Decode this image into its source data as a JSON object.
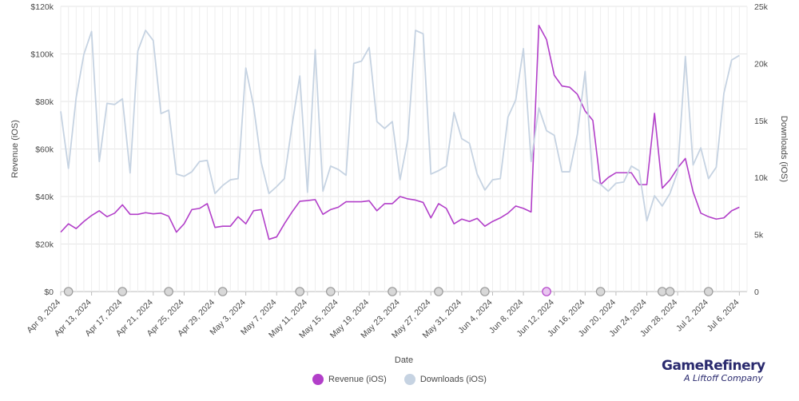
{
  "chart_data": {
    "type": "line",
    "xlabel": "Date",
    "ylabel_left": "Revenue (iOS)",
    "ylabel_right": "Downloads (iOS)",
    "y_left_ticks": [
      "$0",
      "$20k",
      "$40k",
      "$60k",
      "$80k",
      "$100k",
      "$120k"
    ],
    "y_right_ticks": [
      "0",
      "5k",
      "10k",
      "15k",
      "20k",
      "25k"
    ],
    "y_left_range": [
      0,
      120000
    ],
    "y_right_range": [
      0,
      25000
    ],
    "x_ticks": [
      "Apr 9, 2024",
      "Apr 13, 2024",
      "Apr 17, 2024",
      "Apr 21, 2024",
      "Apr 25, 2024",
      "Apr 29, 2024",
      "May 3, 2024",
      "May 7, 2024",
      "May 11, 2024",
      "May 15, 2024",
      "May 19, 2024",
      "May 23, 2024",
      "May 27, 2024",
      "May 31, 2024",
      "Jun 4, 2024",
      "Jun 8, 2024",
      "Jun 12, 2024",
      "Jun 16, 2024",
      "Jun 20, 2024",
      "Jun 24, 2024",
      "Jun 28, 2024",
      "Jul 2, 2024",
      "Jul 6, 2024"
    ],
    "x_start": "Apr 9, 2024",
    "x_end": "Jul 7, 2024",
    "grid": true,
    "legend_position": "bottom-center",
    "series": [
      {
        "name": "Revenue (iOS)",
        "axis": "left",
        "color": "#b23fc9",
        "values": [
          25000,
          28500,
          26500,
          29500,
          32000,
          34000,
          31500,
          33000,
          36500,
          32500,
          32500,
          33200,
          32700,
          33000,
          31700,
          25000,
          28500,
          34500,
          35000,
          37000,
          27000,
          27500,
          27500,
          31500,
          28500,
          34000,
          34500,
          22000,
          23000,
          28500,
          33500,
          38000,
          38300,
          38700,
          32500,
          34500,
          35500,
          37800,
          37800,
          37800,
          38200,
          34000,
          37000,
          37000,
          40000,
          39000,
          38500,
          37500,
          31000,
          37000,
          35000,
          28500,
          30500,
          29500,
          30800,
          27500,
          29500,
          31000,
          33000,
          36000,
          35000,
          33500,
          112000,
          106000,
          91000,
          86500,
          86000,
          83000,
          76000,
          72000,
          45000,
          48000,
          50000,
          50000,
          50000,
          45000,
          45000,
          75000,
          43500,
          47000,
          52000,
          56000,
          42000,
          33000,
          31500,
          30500,
          31000,
          34000,
          35500
        ]
      },
      {
        "name": "Downloads (iOS)",
        "axis": "right",
        "color": "#c6d3e2",
        "values": [
          15800,
          10800,
          17000,
          20800,
          22800,
          11400,
          16500,
          16400,
          16900,
          10400,
          21100,
          22900,
          22000,
          15600,
          15900,
          10300,
          10100,
          10500,
          11400,
          11500,
          8600,
          9300,
          9800,
          9900,
          19600,
          16300,
          11300,
          8600,
          9200,
          9900,
          14600,
          18900,
          8700,
          21200,
          8800,
          11000,
          10700,
          10200,
          20000,
          20200,
          21400,
          14900,
          14300,
          14900,
          9800,
          13300,
          22900,
          22600,
          10300,
          10600,
          11000,
          15700,
          13400,
          13000,
          10300,
          8900,
          9800,
          9900,
          15300,
          16800,
          21300,
          11400,
          16100,
          14100,
          13700,
          10500,
          10500,
          13800,
          19300,
          9800,
          9400,
          8800,
          9500,
          9600,
          11000,
          10600,
          6200,
          8400,
          7500,
          8600,
          10500,
          20600,
          11100,
          12600,
          9900,
          10900,
          17400,
          20300,
          20700
        ]
      }
    ],
    "markers_on_zero_line": [
      "Apr 10, 2024",
      "Apr 17, 2024",
      "Apr 23, 2024",
      "Apr 30, 2024",
      "May 10, 2024",
      "May 14, 2024",
      "May 22, 2024",
      "May 28, 2024",
      "Jun 3, 2024",
      "Jun 11, 2024",
      "Jun 18, 2024",
      "Jun 26, 2024",
      "Jun 27, 2024",
      "Jul 2, 2024"
    ]
  },
  "legend": {
    "revenue_label": "Revenue (iOS)",
    "downloads_label": "Downloads (iOS)"
  },
  "brand": {
    "name": "GameRefinery",
    "tagline": "A Liftoff Company"
  }
}
